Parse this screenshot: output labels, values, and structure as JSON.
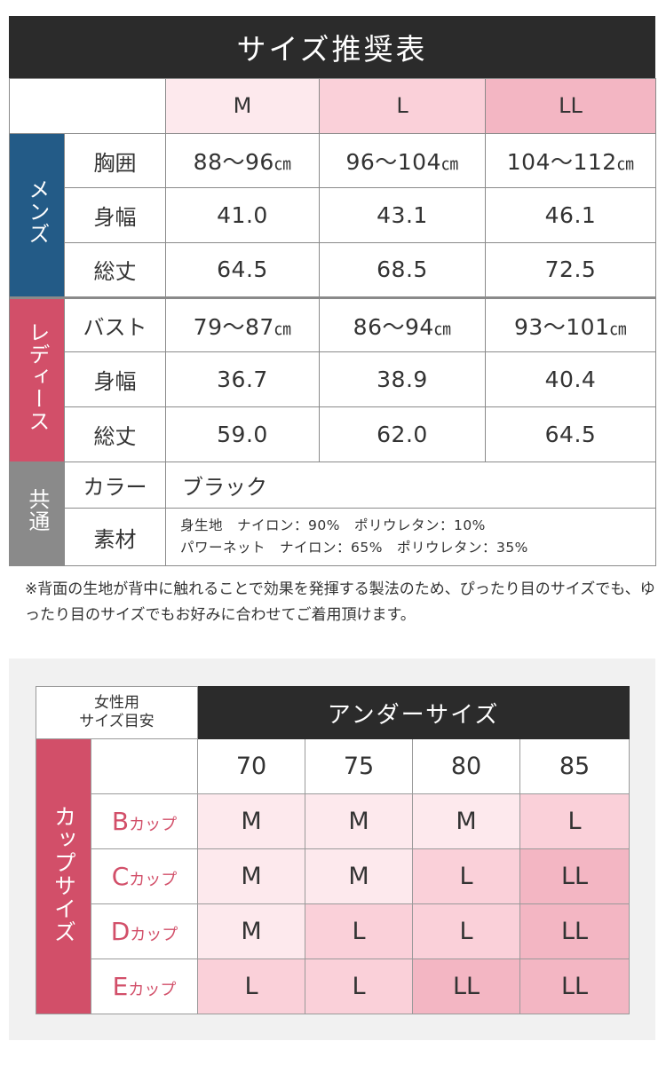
{
  "title": "サイズ推奨表",
  "size_headers": [
    "M",
    "L",
    "LL"
  ],
  "mens": {
    "side_label": "メンズ",
    "rows": [
      {
        "label": "胸囲",
        "values": [
          "88～96",
          "96～104",
          "104～112"
        ],
        "unit": "㎝"
      },
      {
        "label": "身幅",
        "values": [
          "41.0",
          "43.1",
          "46.1"
        ]
      },
      {
        "label": "総丈",
        "values": [
          "64.5",
          "68.5",
          "72.5"
        ]
      }
    ]
  },
  "ladies": {
    "side_label": "レディース",
    "rows": [
      {
        "label": "バスト",
        "values": [
          "79～87",
          "86～94",
          "93～101"
        ],
        "unit": "㎝"
      },
      {
        "label": "身幅",
        "values": [
          "36.7",
          "38.9",
          "40.4"
        ]
      },
      {
        "label": "総丈",
        "values": [
          "59.0",
          "62.0",
          "64.5"
        ]
      }
    ]
  },
  "common": {
    "side_label": "共通",
    "color_label": "カラー",
    "color_value": "ブラック",
    "material_label": "素材",
    "material_line1": "身生地　ナイロン：90%　ポリウレタン：10%",
    "material_line2": "パワーネット　ナイロン：65%　ポリウレタン：35%"
  },
  "note": "※背面の生地が背中に触れることで効果を発揮する製法のため、ぴったり目のサイズでも、ゆったり目のサイズでもお好みに合わせてご着用頂けます。",
  "cup_chart": {
    "guide_line1": "女性用",
    "guide_line2": "サイズ目安",
    "under_header": "アンダーサイズ",
    "side_label": "カップサイズ",
    "cup_suffix": "カップ",
    "under_sizes": [
      "70",
      "75",
      "80",
      "85"
    ],
    "rows": [
      {
        "cup": "B",
        "values": [
          "M",
          "M",
          "M",
          "L"
        ]
      },
      {
        "cup": "C",
        "values": [
          "M",
          "M",
          "L",
          "LL"
        ]
      },
      {
        "cup": "D",
        "values": [
          "M",
          "L",
          "L",
          "LL"
        ]
      },
      {
        "cup": "E",
        "values": [
          "L",
          "L",
          "LL",
          "LL"
        ]
      }
    ]
  }
}
